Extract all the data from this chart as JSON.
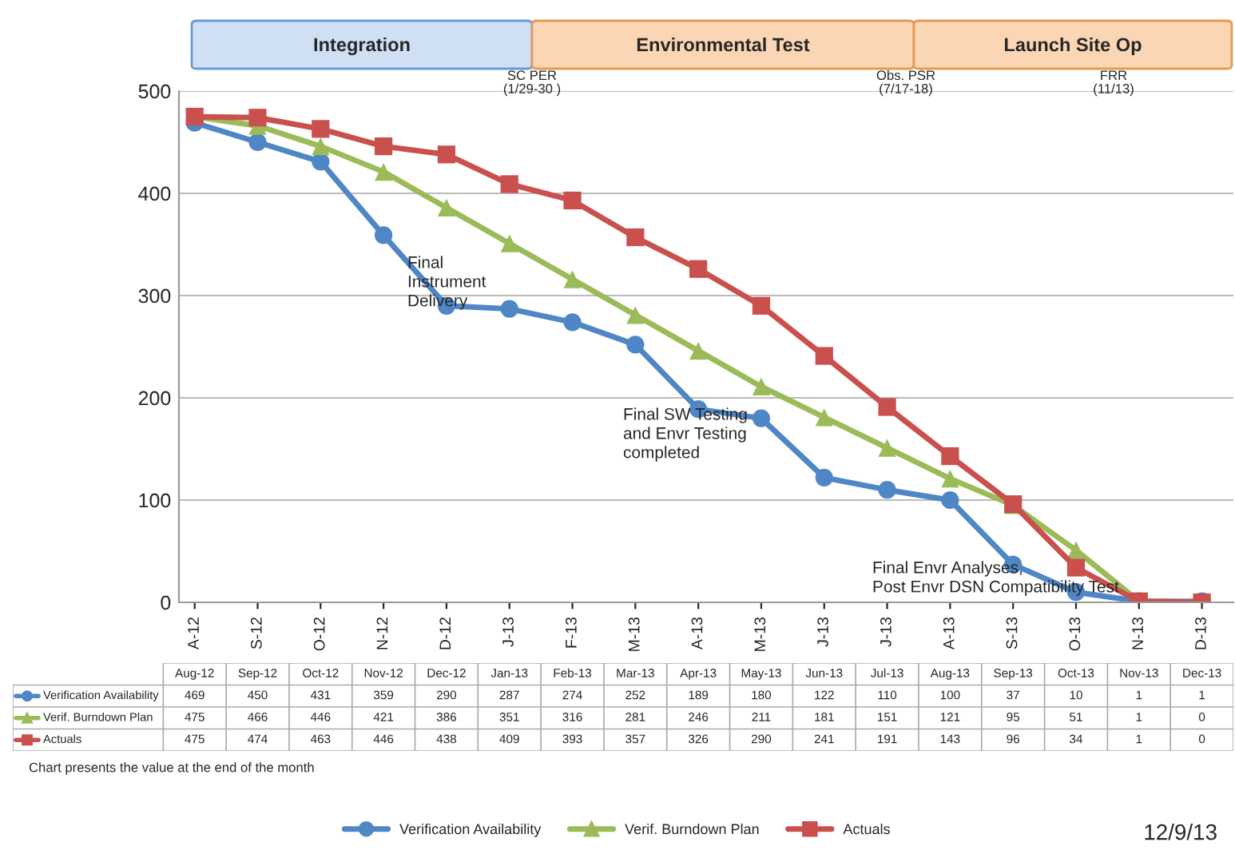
{
  "chart_data": {
    "type": "line",
    "categories": [
      "A-12",
      "S-12",
      "O-12",
      "N-12",
      "D-12",
      "J-13",
      "F-13",
      "M-13",
      "A-13",
      "M-13",
      "J-13",
      "J-13",
      "A-13",
      "S-13",
      "O-13",
      "N-13",
      "D-13"
    ],
    "series": [
      {
        "name": "Verification Availability",
        "color": "#4f86c6",
        "marker": "circle",
        "values": [
          469,
          450,
          431,
          359,
          290,
          287,
          274,
          252,
          189,
          180,
          122,
          110,
          100,
          37,
          10,
          1,
          1
        ]
      },
      {
        "name": "Verif. Burndown Plan",
        "color": "#9bbb59",
        "marker": "triangle",
        "values": [
          475,
          466,
          446,
          421,
          386,
          351,
          316,
          281,
          246,
          211,
          181,
          151,
          121,
          95,
          51,
          1,
          0
        ]
      },
      {
        "name": "Actuals",
        "color": "#c9504d",
        "marker": "square",
        "values": [
          475,
          474,
          463,
          446,
          438,
          409,
          393,
          357,
          326,
          290,
          241,
          191,
          143,
          96,
          34,
          1,
          0
        ]
      }
    ],
    "ylim": [
      0,
      500
    ],
    "yticks": [
      0,
      100,
      200,
      300,
      400,
      500
    ],
    "grid": "y",
    "legend": "bottom",
    "data_labels": true,
    "annotations": [
      "Integration",
      "Environmental Test",
      "Launch Site Op",
      "SC PER\n(1/29-30 )",
      "Obs. PSR\n(7/17-18)",
      "FRR\n(11/13)",
      "Final\nInstrument\nDelivery",
      "Final SW Testing\nand Envr Testing\ncompleted",
      "Final Envr Analyses,\nPost Envr DSN Compatibility Test",
      "Chart presents the value at the end of the month",
      "12/9/13",
      "Aug-12",
      "Sep-12",
      "Oct-12",
      "Nov-12",
      "Dec-12",
      "Jan-13",
      "Feb-13",
      "Mar-13",
      "Apr-13",
      "May-13",
      "Jun-13",
      "Jul-13",
      "Aug-13",
      "Sep-13",
      "Oct-13",
      "Nov-13",
      "Dec-13"
    ]
  }
}
